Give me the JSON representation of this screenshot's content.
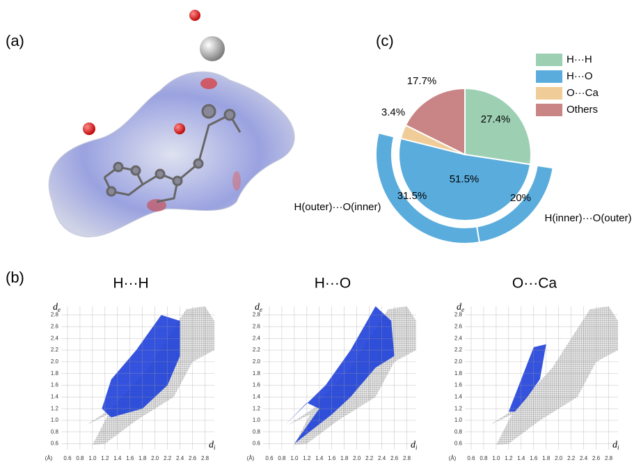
{
  "panels": {
    "a": "(a)",
    "b": "(b)",
    "c": "(c)"
  },
  "chart_data": {
    "type": "pie",
    "categories": [
      "H···H",
      "H···O",
      "O···Ca",
      "Others"
    ],
    "values": [
      27.4,
      51.5,
      3.4,
      17.7
    ],
    "value_labels": [
      "27.4%",
      "51.5%",
      "3.4%",
      "17.7%"
    ],
    "colors": [
      "#9dcfb3",
      "#5aacdc",
      "#f0cc98",
      "#c98585"
    ],
    "outer_ring": {
      "categories": [
        "H(inner)···O(outer)",
        "H(outer)···O(inner)"
      ],
      "values": [
        20,
        31.5
      ],
      "value_labels": [
        "20%",
        "31.5%"
      ],
      "color": "#5aacdc"
    }
  },
  "fingerprints": {
    "titles": [
      "H···H",
      "H···O",
      "O···Ca"
    ],
    "x_label": {
      "symbol": "d",
      "subscript": "i"
    },
    "y_label": {
      "symbol": "d",
      "subscript": "e"
    },
    "unit": "(Å)",
    "xticks": [
      0.6,
      0.8,
      {
        "value": 1,
        "label": "1.0"
      },
      1.2,
      1.4,
      1.6,
      1.8,
      {
        "value": 2,
        "label": "2.0"
      },
      2.2,
      2.4,
      2.6,
      2.8
    ],
    "yticks": [
      0.6,
      0.8,
      {
        "value": 1,
        "label": "1.0"
      },
      1.2,
      1.4,
      1.6,
      1.8,
      {
        "value": 2,
        "label": "2.0"
      },
      2.2,
      2.4,
      2.6,
      2.8
    ],
    "xlim": [
      0.5,
      2.95
    ],
    "ylim": [
      0.5,
      2.95
    ]
  }
}
